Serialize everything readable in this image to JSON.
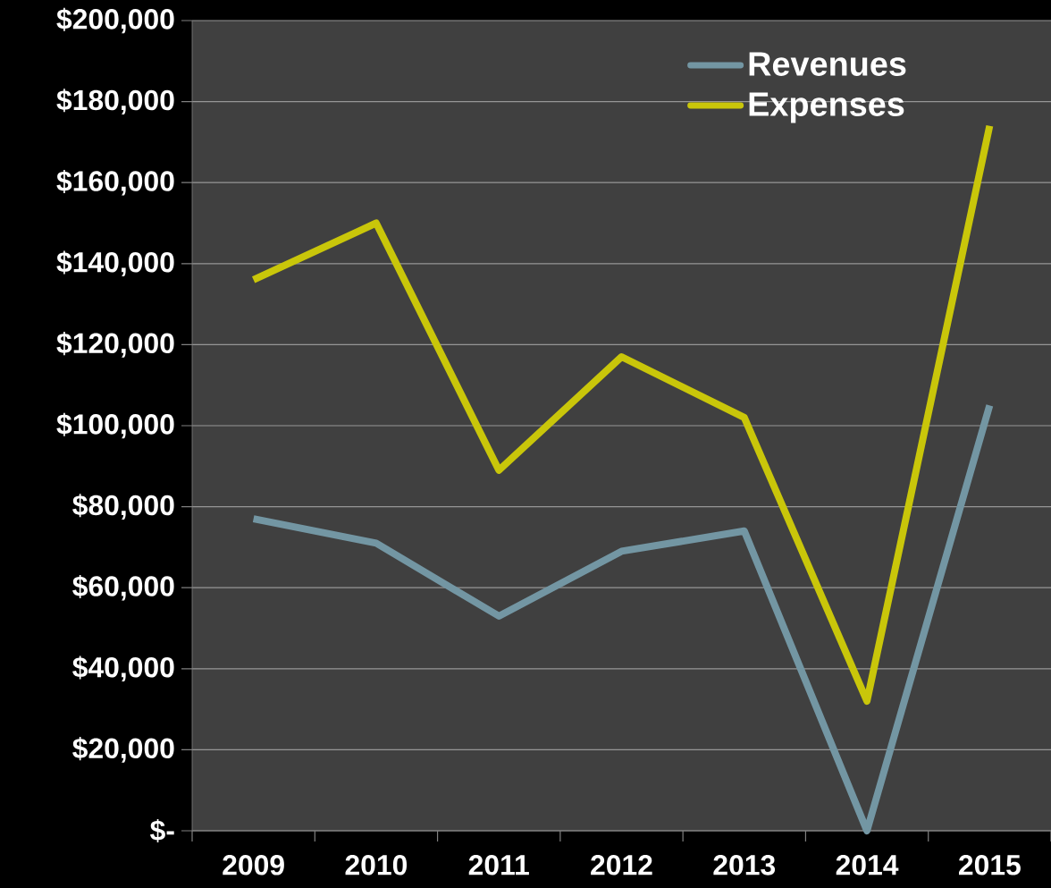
{
  "chart_data": {
    "type": "line",
    "categories": [
      "2009",
      "2010",
      "2011",
      "2012",
      "2013",
      "2014",
      "2015"
    ],
    "series": [
      {
        "name": "Revenues",
        "color": "#7396a3",
        "values": [
          77000,
          71000,
          53000,
          69000,
          74000,
          0,
          105000
        ]
      },
      {
        "name": "Expenses",
        "color": "#c9c60a",
        "values": [
          136000,
          150000,
          89000,
          117000,
          102000,
          32000,
          174000
        ]
      }
    ],
    "ylim": [
      0,
      200000
    ],
    "yticks": [
      {
        "value": 0,
        "label": "$-"
      },
      {
        "value": 20000,
        "label": "$20,000"
      },
      {
        "value": 40000,
        "label": "$40,000"
      },
      {
        "value": 60000,
        "label": "$60,000"
      },
      {
        "value": 80000,
        "label": "$80,000"
      },
      {
        "value": 100000,
        "label": "$100,000"
      },
      {
        "value": 120000,
        "label": "$120,000"
      },
      {
        "value": 140000,
        "label": "$140,000"
      },
      {
        "value": 160000,
        "label": "$160,000"
      },
      {
        "value": 180000,
        "label": "$180,000"
      },
      {
        "value": 200000,
        "label": "$200,000"
      }
    ],
    "grid": "y",
    "legend": "top right",
    "marker": "none",
    "line_style": "solid"
  }
}
